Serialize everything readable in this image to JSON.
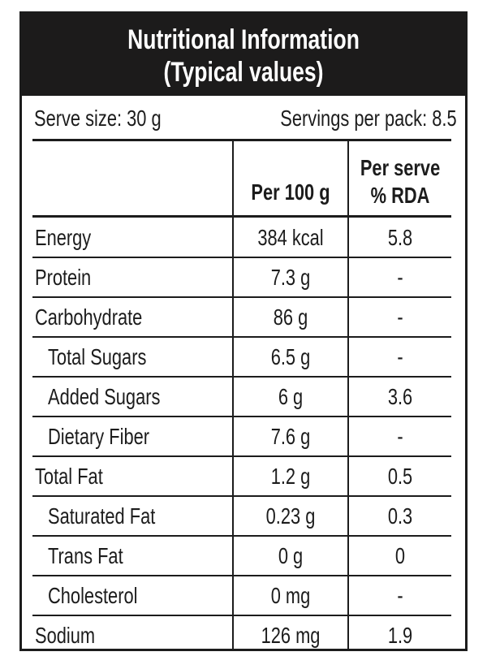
{
  "header": {
    "title_line1": "Nutritional Information",
    "title_line2": "(Typical values)"
  },
  "serving": {
    "serve_size": "Serve size: 30 g",
    "servings_per_pack": "Servings per pack: 8.5"
  },
  "columns": {
    "per_100g": "Per 100 g",
    "per_serve_line1": "Per serve",
    "per_serve_line2": "% RDA"
  },
  "rows": [
    {
      "name": "Energy",
      "per_100g": "384 kcal",
      "rda": "5.8"
    },
    {
      "name": "Protein",
      "per_100g": "7.3 g",
      "rda": "-"
    },
    {
      "name": "Carbohydrate",
      "per_100g": "86 g",
      "rda": "-"
    },
    {
      "name": "Total Sugars",
      "per_100g": "6.5 g",
      "rda": "-"
    },
    {
      "name": "Added Sugars",
      "per_100g": "6 g",
      "rda": "3.6"
    },
    {
      "name": "Dietary Fiber",
      "per_100g": "7.6 g",
      "rda": "-"
    },
    {
      "name": "Total Fat",
      "per_100g": "1.2 g",
      "rda": "0.5"
    },
    {
      "name": "Saturated Fat",
      "per_100g": "0.23 g",
      "rda": "0.3"
    },
    {
      "name": "Trans Fat",
      "per_100g": "0 g",
      "rda": "0"
    },
    {
      "name": "Cholesterol",
      "per_100g": "0 mg",
      "rda": "-"
    },
    {
      "name": "Sodium",
      "per_100g": "126 mg",
      "rda": "1.9"
    }
  ]
}
